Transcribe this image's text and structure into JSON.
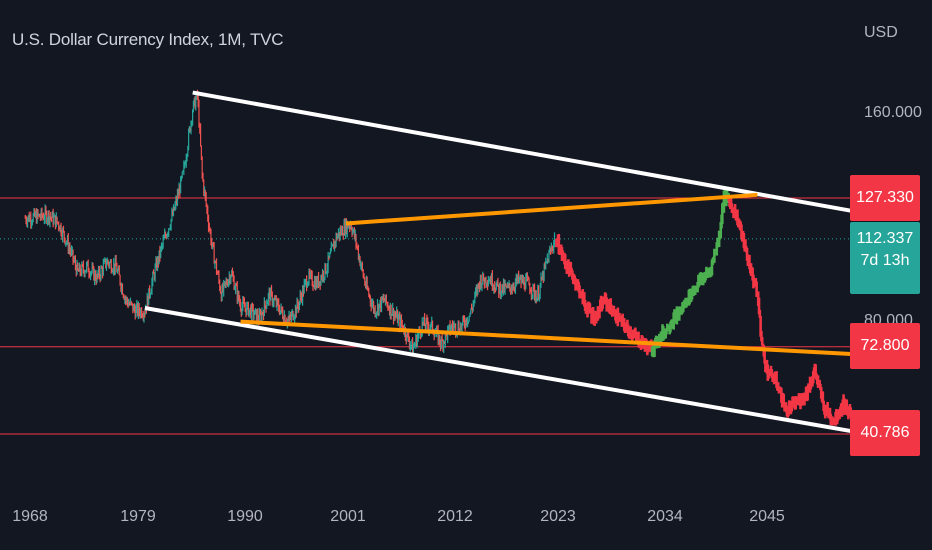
{
  "header": {
    "title": "U.S. Dollar Currency Index, 1M, TVC",
    "currency": "USD"
  },
  "colors": {
    "background": "#131722",
    "up": "#26a69a",
    "down": "#ef5350",
    "projection_down": "#f23645",
    "projection_up": "#4caf50",
    "horizontal_levels": "#f23645",
    "channel_lines": "#ffffff",
    "support_resistance": "#ff9800",
    "current_price_line": "#26a69a"
  },
  "price_axis": {
    "ticks": [
      "160.000",
      "80.000"
    ],
    "badges": {
      "level_127": "127.330",
      "current_price": "112.337",
      "countdown": "7d 13h",
      "level_72": "72.800",
      "level_40": "40.786"
    }
  },
  "time_axis": {
    "ticks": [
      "1968",
      "1979",
      "1990",
      "2001",
      "2012",
      "2023",
      "2034",
      "2045"
    ]
  },
  "chart_data": {
    "type": "line",
    "title": "U.S. Dollar Currency Index, 1M, TVC",
    "xlabel": "",
    "ylabel": "USD",
    "xlim": [
      1967,
      2057
    ],
    "ylim": [
      27,
      180
    ],
    "grid": false,
    "horizontal_levels": [
      127.33,
      72.8,
      40.786
    ],
    "current_price": 112.337,
    "series": [
      {
        "role": "history",
        "x": [
          1967.5,
          1970,
          1971,
          1972,
          1973,
          1974,
          1975,
          1976,
          1977,
          1978,
          1979,
          1980,
          1981,
          1982,
          1983,
          1984,
          1985,
          1985.5,
          1986,
          1987,
          1988,
          1989,
          1990,
          1991,
          1992,
          1993,
          1994,
          1995,
          1996,
          1997,
          1998,
          1999,
          2000,
          2001,
          2001.5,
          2002,
          2003,
          2004,
          2005,
          2006,
          2007,
          2008,
          2009,
          2010,
          2011,
          2012,
          2013,
          2014,
          2015,
          2016,
          2017,
          2018,
          2019,
          2020,
          2021,
          2022,
          2022.8
        ],
        "y": [
          120,
          121,
          118,
          110,
          100,
          102,
          98,
          104,
          102,
          90,
          86,
          86,
          100,
          112,
          122,
          136,
          160,
          165,
          135,
          110,
          92,
          100,
          88,
          86,
          83,
          92,
          87,
          82,
          88,
          98,
          96,
          102,
          113,
          117,
          118,
          112,
          96,
          86,
          90,
          85,
          80,
          72,
          81,
          80,
          74,
          80,
          80,
          85,
          97,
          98,
          94,
          94,
          97,
          96,
          91,
          104,
          112
        ]
      },
      {
        "role": "projection-decline",
        "x": [
          2023,
          2024,
          2025,
          2026,
          2027,
          2028,
          2029,
          2030,
          2031,
          2032,
          2033
        ],
        "y": [
          112,
          103,
          97,
          88,
          83,
          90,
          85,
          81,
          77,
          74,
          72
        ]
      },
      {
        "role": "projection-rally",
        "x": [
          2033,
          2034,
          2035,
          2036,
          2037,
          2038,
          2039,
          2040,
          2040.5,
          2041
        ],
        "y": [
          72,
          77,
          82,
          86,
          92,
          97,
          100,
          113,
          128,
          127
        ]
      },
      {
        "role": "projection-crash",
        "x": [
          2041,
          2042,
          2043,
          2044,
          2044.5,
          2045,
          2046,
          2047,
          2048,
          2049,
          2050,
          2051,
          2052,
          2053,
          2054,
          2054.5
        ],
        "y": [
          127,
          119,
          105,
          92,
          73,
          64,
          60,
          49,
          52,
          55,
          64,
          50,
          46,
          52,
          46,
          41
        ]
      }
    ],
    "trend_lines": [
      {
        "role": "channel-top",
        "x": [
          1985,
          2058
        ],
        "y": [
          166,
          120
        ]
      },
      {
        "role": "channel-bottom",
        "x": [
          1980,
          2055.5
        ],
        "y": [
          87,
          40.8
        ]
      },
      {
        "role": "upper-rising-line",
        "x": [
          2001,
          2044
        ],
        "y": [
          118,
          128.5
        ]
      },
      {
        "role": "lower-falling-line",
        "x": [
          1990,
          2054.5
        ],
        "y": [
          82,
          70
        ]
      }
    ]
  }
}
